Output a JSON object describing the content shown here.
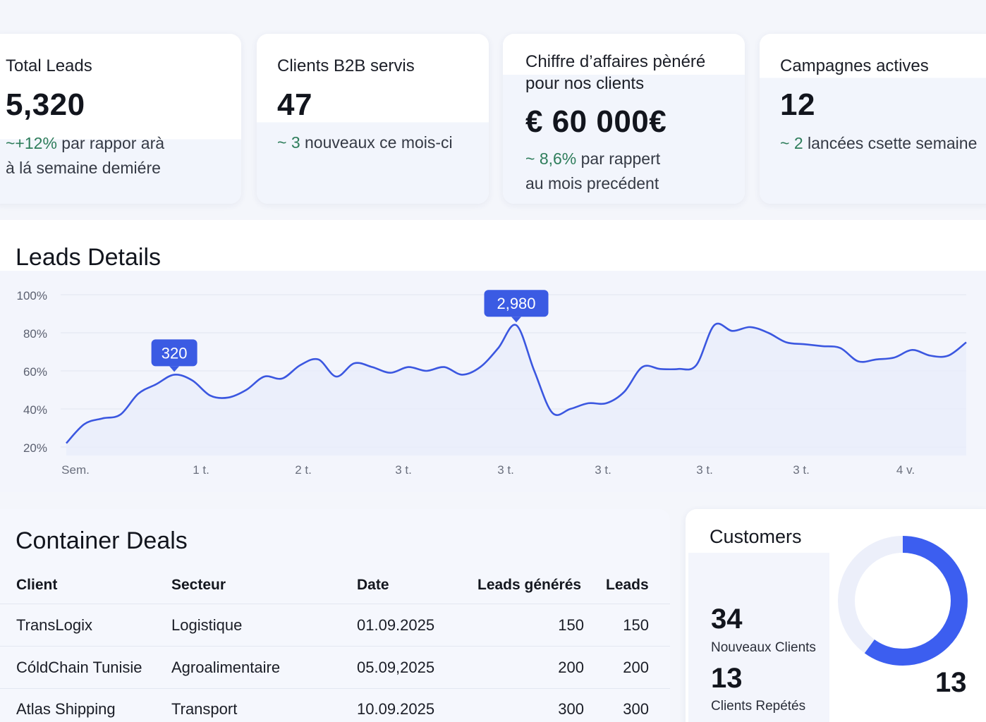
{
  "kpis": [
    {
      "title": "Total Leads",
      "value": "5,320",
      "trend": "~+12%",
      "note_rest": " par rappor arà",
      "note_line2": "à lá semaine demiére"
    },
    {
      "title": "Clients B2B servis",
      "value": "47",
      "trend": "~ 3",
      "note_rest": " nouveaux ce mois-ci"
    },
    {
      "title_line1": "Chiffre d’affaires pènéré",
      "title_line2": "pour nos clients",
      "value": "€ 60 000€",
      "trend": "~ 8,6%",
      "note_rest": " par rappert",
      "note_line2": "au mois precédent"
    },
    {
      "title": "Campagnes actives",
      "value": "12",
      "trend": "~ 2",
      "note_rest": " lancées csette semaine"
    }
  ],
  "leads_details": {
    "title": "Leads Details"
  },
  "chart_data": {
    "type": "line",
    "title": "Leads Details",
    "y_ticks": [
      "100%",
      "80%",
      "60%",
      "40%",
      "20%"
    ],
    "x_ticks": [
      "Sem.",
      "1 t.",
      "2 t.",
      "3 t.",
      "3 t.",
      "3 t.",
      "3 t.",
      "3 t.",
      "4 v."
    ],
    "ylim": [
      20,
      100
    ],
    "grid": true,
    "series": [
      {
        "color": "#3b57e0",
        "values": [
          22,
          32,
          35,
          37,
          48,
          53,
          58,
          55,
          47,
          46,
          50,
          57,
          56,
          63,
          66,
          57,
          64,
          62,
          59,
          62,
          60,
          62,
          58,
          62,
          72,
          84,
          60,
          38,
          40,
          43,
          43,
          49,
          62,
          61,
          61,
          63,
          84,
          81,
          83,
          80,
          75,
          74,
          73,
          72,
          65,
          66,
          67,
          71,
          68,
          68,
          75
        ]
      }
    ],
    "annotations": [
      {
        "label": "320",
        "index": 6
      },
      {
        "label": "2,980",
        "index": 25
      }
    ]
  },
  "deals": {
    "title": "Container Deals",
    "columns": [
      "Client",
      "Secteur",
      "Date",
      "Leads générés",
      "Leads"
    ],
    "rows": [
      [
        "TransLogix",
        "Logistique",
        "01.09.2025",
        "150",
        "150"
      ],
      [
        "CóldChain Tunisie",
        "Agroalimentaire",
        "05.09,2025",
        "200",
        "200"
      ],
      [
        "Atlas Shipping",
        "Transport",
        "10.09.2025",
        "300",
        "300"
      ]
    ]
  },
  "customers": {
    "title": "Customers",
    "new_count": "34",
    "new_label": "Nouveaux Clients",
    "repeat_count": "13",
    "repeat_label": "Clients Repétés",
    "donut_label": "13",
    "donut_fill_fraction": 0.6,
    "colors": {
      "accent": "#3c5ef0",
      "track": "#eceffa"
    }
  }
}
